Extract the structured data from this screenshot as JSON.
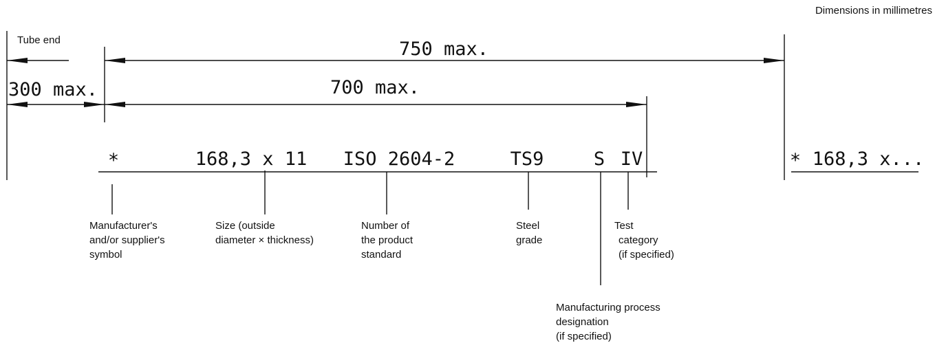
{
  "header": {
    "note": "Dimensions in millimetres"
  },
  "tube_end": "Tube end",
  "dimensions": {
    "d750": "750 max.",
    "d700": "700 max.",
    "d300": "300 max."
  },
  "marking": {
    "symbol": "*",
    "size": "168,3 x 11",
    "standard": "ISO 2604-2",
    "grade": "TS9",
    "process": "S",
    "category": "IV"
  },
  "repeat": {
    "symbol": "*",
    "size": "168,3 x..."
  },
  "callouts": [
    {
      "lines": [
        "Manufacturer's",
        "and/or supplier's",
        "symbol"
      ]
    },
    {
      "lines": [
        "Size (outside",
        "diameter × thickness)"
      ]
    },
    {
      "lines": [
        "Number of",
        "the product",
        "standard"
      ]
    },
    {
      "lines": [
        "Steel",
        "grade"
      ]
    },
    {
      "lines": [
        "Test",
        "category",
        "(if specified)"
      ]
    },
    {
      "lines": [
        "Manufacturing process",
        "designation",
        "(if specified)"
      ]
    }
  ]
}
